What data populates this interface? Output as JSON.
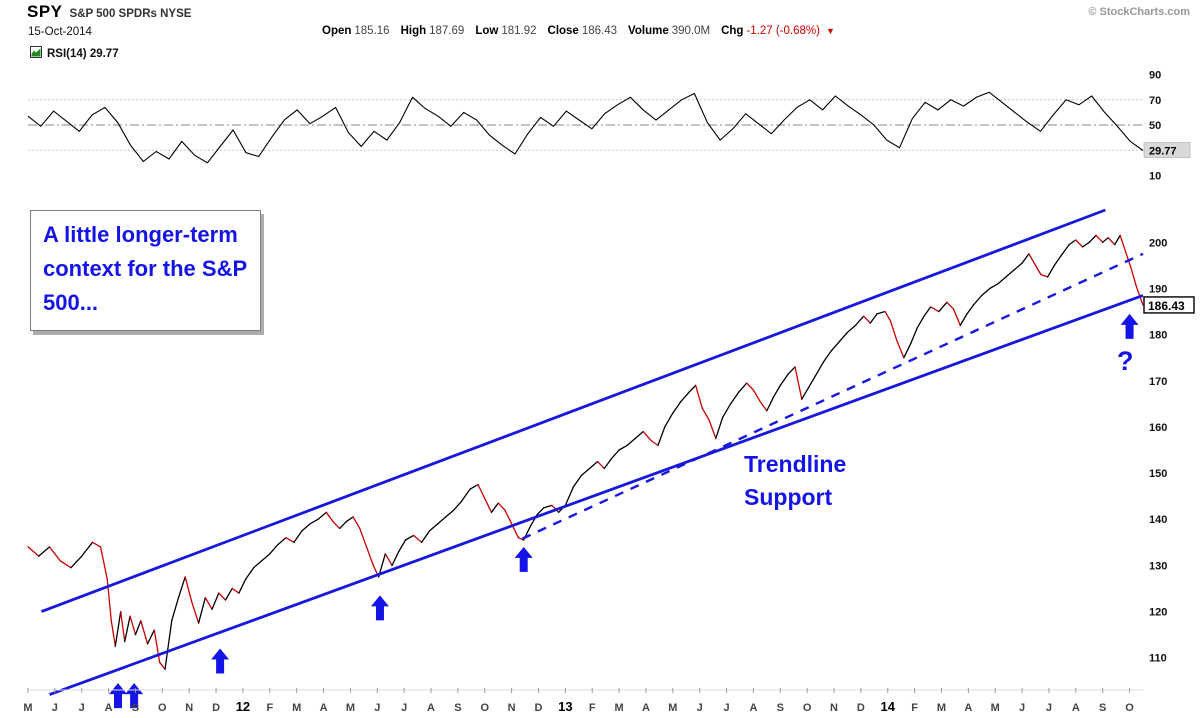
{
  "header": {
    "symbol": "SPY",
    "name": "S&P 500 SPDRs NYSE",
    "source": "© StockCharts.com",
    "date": "15-Oct-2014",
    "quote": {
      "items": [
        {
          "label": "Open",
          "value": "185.16"
        },
        {
          "label": "High",
          "value": "187.69"
        },
        {
          "label": "Low",
          "value": "181.92"
        },
        {
          "label": "Close",
          "value": "186.43"
        },
        {
          "label": "Volume",
          "value": "390.0M"
        },
        {
          "label": "Chg",
          "value": "-1.27 (-0.68%)",
          "negative": true
        }
      ],
      "change_direction_icon": "▼"
    }
  },
  "rsi_panel": {
    "legend": "RSI(14) 29.77"
  },
  "annotations": {
    "callout": "A little longer-term context for the S&P 500...",
    "trendline_label": "Trendline Support",
    "question_mark": "?"
  },
  "colors": {
    "annotation_blue": "#1414e6",
    "trendline_blue": "#1717dd",
    "price_up": "#000000",
    "price_down": "#cc0000",
    "rsi_line": "#000000",
    "label_box_bg": "#d9d9d9",
    "negative_red": "#cc0000"
  },
  "chart_data": [
    {
      "id": "rsi",
      "type": "line",
      "title": "RSI(14)",
      "x_range": [
        0,
        41.5
      ],
      "ylim": [
        0,
        100
      ],
      "yticks": [
        90,
        70,
        50,
        30,
        10
      ],
      "gridlines": [
        70,
        30
      ],
      "midline": 50,
      "last_value": 29.77,
      "values": [
        57,
        49,
        61,
        53,
        45,
        58,
        64,
        52,
        34,
        21,
        29,
        23,
        37,
        26,
        20,
        33,
        46,
        28,
        25,
        40,
        54,
        62,
        51,
        57,
        64,
        44,
        33,
        45,
        38,
        52,
        72,
        63,
        57,
        49,
        60,
        54,
        42,
        34,
        27,
        43,
        56,
        49,
        61,
        54,
        47,
        59,
        66,
        72,
        62,
        54,
        62,
        70,
        75,
        52,
        38,
        47,
        59,
        51,
        43,
        54,
        64,
        70,
        62,
        73,
        65,
        58,
        50,
        38,
        32,
        55,
        68,
        62,
        70,
        65,
        72,
        76,
        68,
        60,
        52,
        45,
        58,
        70,
        66,
        73,
        60,
        49,
        37,
        29.77
      ]
    },
    {
      "id": "price",
      "type": "line",
      "title": "SPY daily close",
      "x_range": [
        0,
        41.5
      ],
      "ylim": [
        103,
        207
      ],
      "yticks": [
        200,
        190,
        180,
        170,
        160,
        150,
        140,
        130,
        120,
        110
      ],
      "last_value": 186.43,
      "points": [
        [
          0,
          134
        ],
        [
          0.4,
          132
        ],
        [
          0.8,
          134
        ],
        [
          1.2,
          131
        ],
        [
          1.6,
          129.5
        ],
        [
          2,
          132
        ],
        [
          2.4,
          135
        ],
        [
          2.7,
          134
        ],
        [
          2.95,
          127
        ],
        [
          3.1,
          118
        ],
        [
          3.25,
          112.5
        ],
        [
          3.45,
          120
        ],
        [
          3.6,
          113.5
        ],
        [
          3.8,
          119
        ],
        [
          4,
          115
        ],
        [
          4.2,
          118
        ],
        [
          4.45,
          113
        ],
        [
          4.7,
          116
        ],
        [
          4.9,
          109
        ],
        [
          5.1,
          107.5
        ],
        [
          5.35,
          118
        ],
        [
          5.6,
          123
        ],
        [
          5.85,
          127.5
        ],
        [
          6.1,
          122
        ],
        [
          6.35,
          117.5
        ],
        [
          6.6,
          123
        ],
        [
          6.85,
          120.5
        ],
        [
          7.1,
          124
        ],
        [
          7.35,
          122.5
        ],
        [
          7.6,
          125
        ],
        [
          7.85,
          124
        ],
        [
          8.1,
          127
        ],
        [
          8.4,
          129.5
        ],
        [
          8.7,
          131
        ],
        [
          9,
          132.5
        ],
        [
          9.3,
          134.5
        ],
        [
          9.6,
          136
        ],
        [
          9.9,
          135
        ],
        [
          10.2,
          137.5
        ],
        [
          10.5,
          139
        ],
        [
          10.8,
          140
        ],
        [
          11.1,
          141.5
        ],
        [
          11.35,
          139.5
        ],
        [
          11.6,
          138
        ],
        [
          11.85,
          139.5
        ],
        [
          12.1,
          140.5
        ],
        [
          12.35,
          138
        ],
        [
          12.6,
          134
        ],
        [
          12.85,
          130
        ],
        [
          13.05,
          127.5
        ],
        [
          13.3,
          132.5
        ],
        [
          13.55,
          130
        ],
        [
          13.8,
          133
        ],
        [
          14.05,
          135.5
        ],
        [
          14.35,
          136.5
        ],
        [
          14.65,
          135
        ],
        [
          14.95,
          137.5
        ],
        [
          15.25,
          139
        ],
        [
          15.55,
          140.5
        ],
        [
          15.85,
          142
        ],
        [
          16.15,
          144
        ],
        [
          16.45,
          146.5
        ],
        [
          16.75,
          147.5
        ],
        [
          17,
          144.5
        ],
        [
          17.25,
          141.5
        ],
        [
          17.5,
          143.5
        ],
        [
          17.75,
          142
        ],
        [
          18,
          139
        ],
        [
          18.25,
          136
        ],
        [
          18.45,
          135.5
        ],
        [
          18.7,
          138.5
        ],
        [
          18.95,
          141
        ],
        [
          19.2,
          142.5
        ],
        [
          19.5,
          143
        ],
        [
          19.75,
          141.5
        ],
        [
          20,
          143
        ],
        [
          20.3,
          147
        ],
        [
          20.6,
          149.5
        ],
        [
          20.9,
          151
        ],
        [
          21.2,
          152.5
        ],
        [
          21.45,
          151
        ],
        [
          21.7,
          153
        ],
        [
          22,
          155
        ],
        [
          22.3,
          156
        ],
        [
          22.6,
          157.5
        ],
        [
          22.9,
          159
        ],
        [
          23.2,
          157
        ],
        [
          23.45,
          156
        ],
        [
          23.7,
          160
        ],
        [
          24,
          163
        ],
        [
          24.3,
          165.5
        ],
        [
          24.6,
          167.5
        ],
        [
          24.85,
          169
        ],
        [
          25.1,
          164
        ],
        [
          25.35,
          161.5
        ],
        [
          25.6,
          157.5
        ],
        [
          25.85,
          162
        ],
        [
          26.15,
          165
        ],
        [
          26.45,
          167.5
        ],
        [
          26.75,
          169.5
        ],
        [
          27,
          168
        ],
        [
          27.25,
          165.5
        ],
        [
          27.5,
          163.5
        ],
        [
          27.75,
          166.5
        ],
        [
          28,
          169
        ],
        [
          28.3,
          171.5
        ],
        [
          28.55,
          173
        ],
        [
          28.8,
          166
        ],
        [
          29.05,
          168.5
        ],
        [
          29.3,
          171
        ],
        [
          29.6,
          174
        ],
        [
          29.9,
          176.5
        ],
        [
          30.2,
          178.5
        ],
        [
          30.5,
          180.5
        ],
        [
          30.8,
          182
        ],
        [
          31.1,
          184
        ],
        [
          31.35,
          182.5
        ],
        [
          31.6,
          184.5
        ],
        [
          31.9,
          185
        ],
        [
          32.1,
          183
        ],
        [
          32.35,
          178.5
        ],
        [
          32.6,
          175
        ],
        [
          32.85,
          178
        ],
        [
          33.1,
          181.5
        ],
        [
          33.35,
          184
        ],
        [
          33.6,
          186
        ],
        [
          33.9,
          185
        ],
        [
          34.2,
          187
        ],
        [
          34.45,
          185.5
        ],
        [
          34.7,
          182
        ],
        [
          34.95,
          184.5
        ],
        [
          35.2,
          186.5
        ],
        [
          35.5,
          188.5
        ],
        [
          35.8,
          190
        ],
        [
          36.1,
          191
        ],
        [
          36.4,
          192.5
        ],
        [
          36.7,
          194
        ],
        [
          37,
          195.5
        ],
        [
          37.25,
          197.5
        ],
        [
          37.5,
          195
        ],
        [
          37.7,
          193
        ],
        [
          37.95,
          192.5
        ],
        [
          38.2,
          195
        ],
        [
          38.5,
          197.5
        ],
        [
          38.75,
          199.5
        ],
        [
          39,
          200.5
        ],
        [
          39.25,
          199
        ],
        [
          39.5,
          200
        ],
        [
          39.75,
          201.5
        ],
        [
          40,
          200
        ],
        [
          40.2,
          201
        ],
        [
          40.45,
          199.5
        ],
        [
          40.65,
          201.5
        ],
        [
          40.85,
          198
        ],
        [
          41.05,
          194.5
        ],
        [
          41.25,
          190.5
        ],
        [
          41.4,
          188
        ],
        [
          41.5,
          186.43
        ]
      ],
      "trendlines": [
        {
          "name": "upper-channel",
          "style": "solid",
          "from": [
            0.5,
            120
          ],
          "to": [
            40.1,
            207
          ]
        },
        {
          "name": "lower-channel",
          "style": "solid",
          "from": [
            0.8,
            102
          ],
          "to": [
            41.5,
            188.5
          ]
        },
        {
          "name": "trendline-support",
          "style": "dashed",
          "from": [
            18.4,
            135.8
          ],
          "to": [
            41.5,
            197.5
          ]
        }
      ],
      "arrows": [
        [
          3.35,
          104.5
        ],
        [
          3.95,
          104.5
        ],
        [
          7.15,
          112
        ],
        [
          13.1,
          123.5
        ],
        [
          18.45,
          134
        ],
        [
          41.0,
          184.5
        ]
      ],
      "question_at": [
        40.8,
        172.5
      ],
      "x_ticks": [
        {
          "t": 0,
          "label": "M"
        },
        {
          "t": 1,
          "label": "J"
        },
        {
          "t": 2,
          "label": "J"
        },
        {
          "t": 3,
          "label": "A"
        },
        {
          "t": 4,
          "label": "S"
        },
        {
          "t": 5,
          "label": "O"
        },
        {
          "t": 6,
          "label": "N"
        },
        {
          "t": 7,
          "label": "D"
        },
        {
          "t": 8,
          "label": "12",
          "year": true
        },
        {
          "t": 9,
          "label": "F"
        },
        {
          "t": 10,
          "label": "M"
        },
        {
          "t": 11,
          "label": "A"
        },
        {
          "t": 12,
          "label": "M"
        },
        {
          "t": 13,
          "label": "J"
        },
        {
          "t": 14,
          "label": "J"
        },
        {
          "t": 15,
          "label": "A"
        },
        {
          "t": 16,
          "label": "S"
        },
        {
          "t": 17,
          "label": "O"
        },
        {
          "t": 18,
          "label": "N"
        },
        {
          "t": 19,
          "label": "D"
        },
        {
          "t": 20,
          "label": "13",
          "year": true
        },
        {
          "t": 21,
          "label": "F"
        },
        {
          "t": 22,
          "label": "M"
        },
        {
          "t": 23,
          "label": "A"
        },
        {
          "t": 24,
          "label": "M"
        },
        {
          "t": 25,
          "label": "J"
        },
        {
          "t": 26,
          "label": "J"
        },
        {
          "t": 27,
          "label": "A"
        },
        {
          "t": 28,
          "label": "S"
        },
        {
          "t": 29,
          "label": "O"
        },
        {
          "t": 30,
          "label": "N"
        },
        {
          "t": 31,
          "label": "D"
        },
        {
          "t": 32,
          "label": "14",
          "year": true
        },
        {
          "t": 33,
          "label": "F"
        },
        {
          "t": 34,
          "label": "M"
        },
        {
          "t": 35,
          "label": "A"
        },
        {
          "t": 36,
          "label": "M"
        },
        {
          "t": 37,
          "label": "J"
        },
        {
          "t": 38,
          "label": "J"
        },
        {
          "t": 39,
          "label": "A"
        },
        {
          "t": 40,
          "label": "S"
        },
        {
          "t": 41,
          "label": "O"
        }
      ]
    }
  ]
}
